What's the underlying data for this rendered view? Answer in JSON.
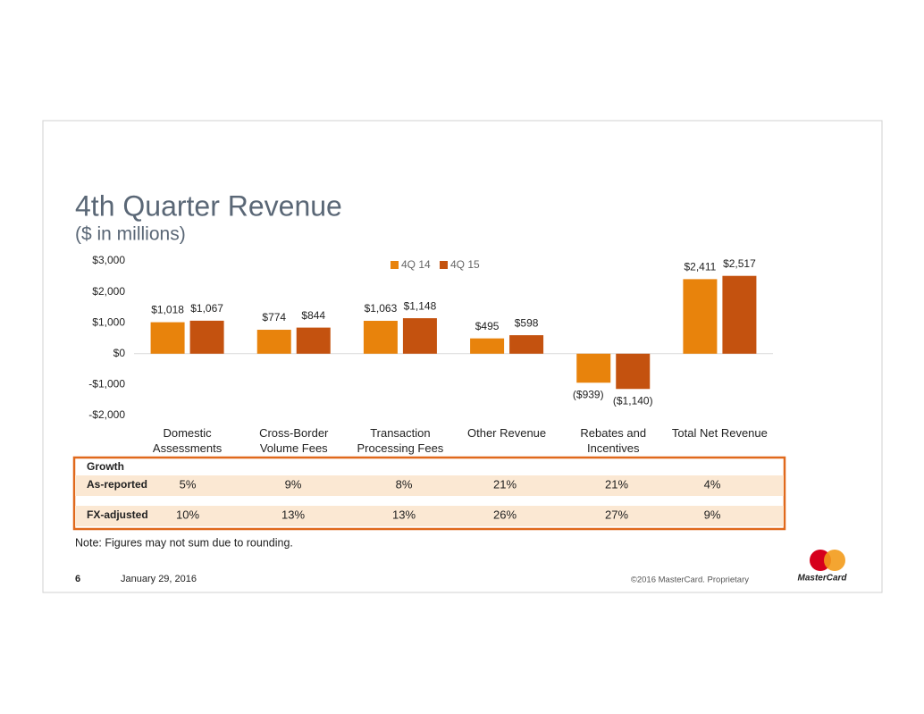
{
  "chart_data": {
    "type": "bar",
    "title": "4th Quarter Revenue",
    "subtitle": "($ in millions)",
    "categories": [
      "Domestic Assessments",
      "Cross-Border Volume Fees",
      "Transaction Processing Fees",
      "Other Revenue",
      "Rebates and Incentives",
      "Total Net Revenue"
    ],
    "series": [
      {
        "name": "4Q 14",
        "color": "#e8830c",
        "values": [
          1018,
          774,
          1063,
          495,
          -939,
          2411
        ],
        "value_labels": [
          "$1,018",
          "$774",
          "$1,063",
          "$495",
          "($939)",
          "$2,411"
        ]
      },
      {
        "name": "4Q 15",
        "color": "#c4520f",
        "values": [
          1067,
          844,
          1148,
          598,
          -1140,
          2517
        ],
        "value_labels": [
          "$1,067",
          "$844",
          "$1,148",
          "$598",
          "($1,140)",
          "$2,517"
        ]
      }
    ],
    "ylim": [
      -2000,
      3000
    ],
    "yticks": [
      {
        "value": -2000,
        "label": "-$2,000"
      },
      {
        "value": -1000,
        "label": "-$1,000"
      },
      {
        "value": 0,
        "label": "$0"
      },
      {
        "value": 1000,
        "label": "$1,000"
      },
      {
        "value": 2000,
        "label": "$2,000"
      },
      {
        "value": 3000,
        "label": "$3,000"
      }
    ],
    "grid": false,
    "legend": "top"
  },
  "growth_table": {
    "title": "Growth",
    "rows": [
      {
        "label": "As-reported",
        "values": [
          "5%",
          "9%",
          "8%",
          "21%",
          "21%",
          "4%"
        ]
      },
      {
        "label": "FX-adjusted",
        "values": [
          "10%",
          "13%",
          "13%",
          "26%",
          "27%",
          "9%"
        ]
      }
    ]
  },
  "note": "Note: Figures may not sum due to rounding.",
  "footer": {
    "page": "6",
    "date": "January 29, 2016",
    "copyright": "©2016 MasterCard. Proprietary",
    "logo": "MasterCard"
  }
}
